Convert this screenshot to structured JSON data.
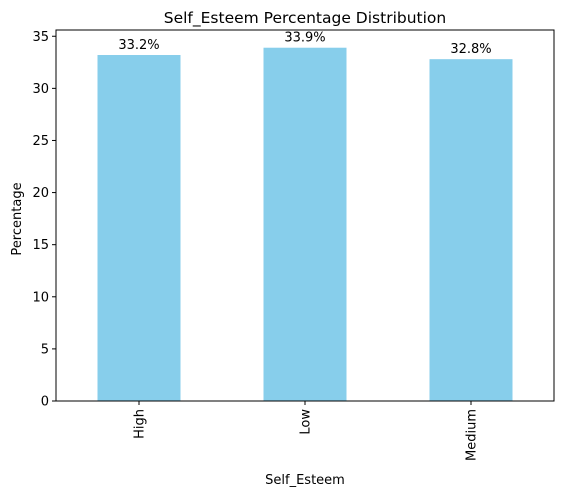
{
  "chart_data": {
    "type": "bar",
    "title": "Self_Esteem Percentage Distribution",
    "xlabel": "Self_Esteem",
    "ylabel": "Percentage",
    "categories": [
      "High",
      "Low",
      "Medium"
    ],
    "values": [
      33.2,
      33.9,
      32.8
    ],
    "value_labels": [
      "33.2%",
      "33.9%",
      "32.8%"
    ],
    "ylim": [
      0,
      35.6
    ],
    "yticks": [
      0,
      5,
      10,
      15,
      20,
      25,
      30,
      35
    ],
    "grid": false,
    "legend": "none",
    "colors": {
      "bar": "#87CEEB",
      "axis": "#000000",
      "background": "#ffffff"
    }
  }
}
